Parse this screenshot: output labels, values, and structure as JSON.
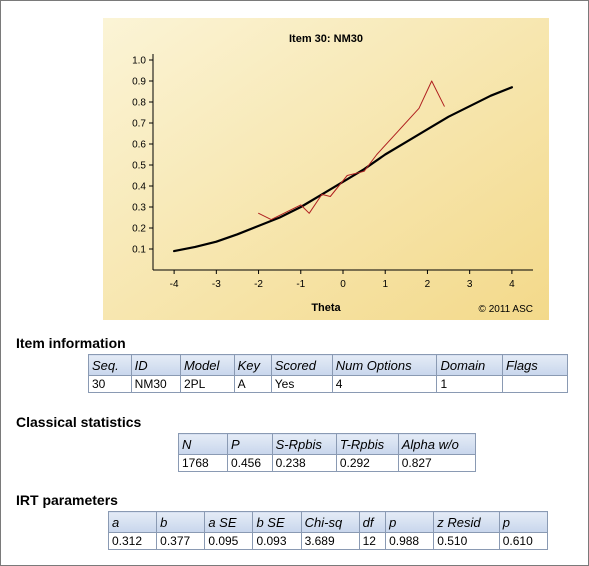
{
  "chart_data": {
    "type": "line",
    "title": "Item 30: NM30",
    "xlabel": "Theta",
    "ylabel": "",
    "copyright": "© 2011 ASC",
    "xlim": [
      -4.5,
      4.5
    ],
    "ylim": [
      0,
      1.0
    ],
    "x_ticks": [
      "-4",
      "-3",
      "-2",
      "-1",
      "0",
      "1",
      "2",
      "3",
      "4"
    ],
    "y_ticks": [
      "0.1",
      "0.2",
      "0.3",
      "0.4",
      "0.5",
      "0.6",
      "0.7",
      "0.8",
      "0.9",
      "1.0"
    ],
    "series": [
      {
        "kind": "model_curve",
        "color": "#000000",
        "x": [
          -4.0,
          -3.5,
          -3.0,
          -2.5,
          -2.0,
          -1.5,
          -1.0,
          -0.5,
          0.0,
          0.5,
          1.0,
          1.5,
          2.0,
          2.5,
          3.0,
          3.5,
          4.0
        ],
        "y": [
          0.09,
          0.11,
          0.135,
          0.17,
          0.21,
          0.25,
          0.3,
          0.36,
          0.42,
          0.48,
          0.55,
          0.61,
          0.67,
          0.73,
          0.78,
          0.83,
          0.87
        ]
      },
      {
        "kind": "observed",
        "color": "#b02020",
        "x": [
          -2.0,
          -1.7,
          -1.3,
          -1.0,
          -0.8,
          -0.5,
          -0.3,
          0.1,
          0.5,
          0.8,
          1.3,
          1.8,
          2.1,
          2.4
        ],
        "y": [
          0.27,
          0.24,
          0.28,
          0.31,
          0.27,
          0.36,
          0.35,
          0.45,
          0.47,
          0.55,
          0.66,
          0.77,
          0.9,
          0.78
        ]
      }
    ]
  },
  "item_info": {
    "title": "Item information",
    "headers": [
      "Seq.",
      "ID",
      "Model",
      "Key",
      "Scored",
      "Num Options",
      "Domain",
      "Flags"
    ],
    "row": [
      "30",
      "NM30",
      "2PL",
      "A",
      "Yes",
      "4",
      "1",
      ""
    ]
  },
  "classical": {
    "title": "Classical statistics",
    "headers": [
      "N",
      "P",
      "S-Rpbis",
      "T-Rpbis",
      "Alpha w/o"
    ],
    "row": [
      "1768",
      "0.456",
      "0.238",
      "0.292",
      "0.827"
    ]
  },
  "irt": {
    "title": "IRT parameters",
    "headers": [
      "a",
      "b",
      "a SE",
      "b SE",
      "Chi-sq",
      "df",
      "p",
      "z Resid",
      "p"
    ],
    "row": [
      "0.312",
      "0.377",
      "0.095",
      "0.093",
      "3.689",
      "12",
      "0.988",
      "0.510",
      "0.610"
    ]
  }
}
